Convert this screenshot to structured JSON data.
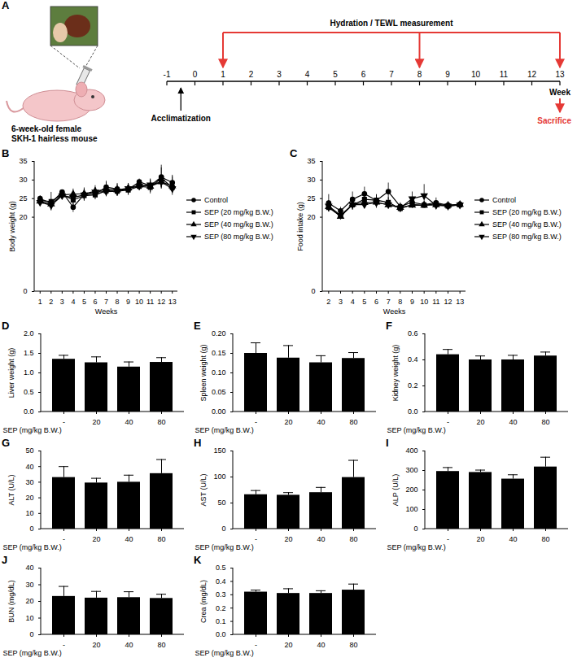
{
  "diagram": {
    "panel": "A",
    "subject_lines": [
      "6-week-old female",
      "SKH-1 hairless mouse"
    ],
    "timeline": {
      "weeks": [
        -1,
        0,
        1,
        2,
        3,
        4,
        5,
        6,
        7,
        8,
        9,
        10,
        11,
        12,
        13
      ],
      "axis_label": "Week",
      "start_event": "Acclimatization",
      "measurement_label": "Hydration / TEWL measurement",
      "measurement_weeks": [
        1,
        8,
        13
      ],
      "end_event": "Sacrifice",
      "end_week": 13
    }
  },
  "chart_data": [
    {
      "panel": "B",
      "type": "line",
      "xlabel": "Weeks",
      "ylabel": "Body weight (g)",
      "x": [
        1,
        2,
        3,
        4,
        5,
        6,
        7,
        8,
        9,
        10,
        11,
        12,
        13
      ],
      "xlim": [
        0.5,
        13.5
      ],
      "xticks": [
        1,
        2,
        3,
        4,
        5,
        6,
        7,
        8,
        9,
        10,
        11,
        12,
        13
      ],
      "ylim": [
        0,
        35
      ],
      "yticks": [
        0,
        20,
        25,
        30,
        35
      ],
      "legend": "right",
      "series": [
        {
          "name": "Control",
          "color": "#000000",
          "marker": "circle",
          "line_style": "solid",
          "values": [
            25,
            23.8,
            26.8,
            22.7,
            26.1,
            26.2,
            28.1,
            27.6,
            27.5,
            29.5,
            28.5,
            30.8,
            29.3
          ],
          "errors": [
            0.8,
            1.0,
            0.5,
            1.4,
            1.5,
            1.2,
            1.6,
            1.5,
            1.6,
            0.8,
            1.8,
            3.2,
            2.0
          ]
        },
        {
          "name": "SEP (20 mg/kg B.W.)",
          "color": "#000000",
          "marker": "square",
          "line_style": "solid",
          "values": [
            24.5,
            24.2,
            26.2,
            24.6,
            25.8,
            26.0,
            27.1,
            27.0,
            27.3,
            28.3,
            28.0,
            30.5,
            28.0
          ],
          "errors": [
            1.0,
            2.5,
            0.8,
            1.5,
            1.5,
            1.3,
            1.4,
            1.3,
            1.3,
            1.0,
            1.7,
            2.8,
            1.5
          ]
        },
        {
          "name": "SEP (40 mg/kg B.W.)",
          "color": "#000000",
          "marker": "triangle-up",
          "line_style": "solid",
          "values": [
            24.3,
            23.5,
            26.0,
            26.2,
            26.3,
            27.0,
            27.5,
            27.3,
            27.8,
            28.6,
            28.3,
            29.5,
            28.4
          ],
          "errors": [
            0.9,
            1.2,
            0.7,
            1.4,
            1.6,
            1.5,
            1.8,
            1.5,
            1.2,
            1.0,
            1.5,
            1.5,
            2.5
          ]
        },
        {
          "name": "SEP (80 mg/kg B.W.)",
          "color": "#000000",
          "marker": "triangle-down",
          "line_style": "solid",
          "values": [
            24.0,
            23.2,
            25.8,
            25.3,
            26.0,
            26.8,
            26.9,
            27.0,
            27.7,
            28.4,
            28.7,
            29.5,
            27.7
          ],
          "errors": [
            0.7,
            1.2,
            0.9,
            1.3,
            1.4,
            1.2,
            1.4,
            1.4,
            1.0,
            1.2,
            1.4,
            1.5,
            1.0
          ]
        }
      ]
    },
    {
      "panel": "C",
      "type": "line",
      "xlabel": "Weeks",
      "ylabel": "Food intake (g)",
      "x": [
        2,
        3,
        4,
        5,
        6,
        7,
        8,
        9,
        10,
        11,
        12,
        13
      ],
      "xlim": [
        1.5,
        13.5
      ],
      "xticks": [
        2,
        3,
        4,
        5,
        6,
        7,
        8,
        9,
        10,
        11,
        12,
        13
      ],
      "ylim": [
        0,
        35
      ],
      "yticks": [
        0,
        20,
        25,
        30,
        35
      ],
      "legend": "right",
      "series": [
        {
          "name": "Control",
          "color": "#000000",
          "marker": "circle",
          "line_style": "solid",
          "values": [
            23.8,
            21.7,
            24.8,
            26.3,
            24.5,
            26.9,
            22.9,
            24.0,
            23.4,
            23.9,
            23.2,
            23.5
          ],
          "errors": [
            2.3,
            1.0,
            2.0,
            1.8,
            1.5,
            2.3,
            1.0,
            1.2,
            0.8,
            1.3,
            0.8,
            0.6
          ]
        },
        {
          "name": "SEP (20 mg/kg B.W.)",
          "color": "#000000",
          "marker": "square",
          "line_style": "solid",
          "values": [
            22.6,
            20.3,
            23.3,
            24.8,
            24.6,
            24.0,
            22.3,
            23.4,
            23.2,
            23.6,
            23.0,
            23.3
          ],
          "errors": [
            1.2,
            0.8,
            1.3,
            1.0,
            1.5,
            1.3,
            0.6,
            1.0,
            0.7,
            0.7,
            0.7,
            0.6
          ]
        },
        {
          "name": "SEP (40 mg/kg B.W.)",
          "color": "#000000",
          "marker": "triangle-up",
          "line_style": "solid",
          "values": [
            22.8,
            20.2,
            23.5,
            23.9,
            24.0,
            23.3,
            22.6,
            23.2,
            23.2,
            23.3,
            23.2,
            23.4
          ],
          "errors": [
            1.3,
            0.7,
            1.2,
            1.2,
            1.3,
            1.1,
            0.8,
            0.8,
            0.8,
            0.8,
            0.8,
            0.5
          ]
        },
        {
          "name": "SEP (80 mg/kg B.W.)",
          "color": "#000000",
          "marker": "triangle-down",
          "line_style": "solid",
          "values": [
            23.0,
            20.5,
            23.4,
            23.4,
            23.9,
            23.4,
            22.5,
            25.0,
            25.8,
            23.2,
            23.0,
            23.3
          ],
          "errors": [
            1.5,
            0.8,
            1.5,
            1.0,
            1.5,
            1.0,
            0.8,
            1.8,
            3.0,
            0.9,
            0.8,
            0.6
          ]
        }
      ]
    },
    {
      "panel": "D",
      "type": "bar",
      "xlabel": "SEP (mg/kg B.W.)",
      "ylabel": "Liver weight (g)",
      "categories": [
        "-",
        "20",
        "40",
        "80"
      ],
      "values": [
        1.35,
        1.26,
        1.15,
        1.27
      ],
      "errors": [
        0.1,
        0.15,
        0.13,
        0.12
      ],
      "color": "#000000",
      "ylim": [
        0,
        2
      ],
      "yticks": [
        {
          "value": 0,
          "label": "0.0"
        },
        {
          "value": 0.5,
          "label": "0.5"
        },
        {
          "value": 1,
          "label": "1.0"
        },
        {
          "value": 1.5,
          "label": "1.5"
        },
        {
          "value": 2,
          "label": "2.0"
        }
      ]
    },
    {
      "panel": "E",
      "type": "bar",
      "xlabel": "SEP (mg/kg B.W.)",
      "ylabel": "Spleen weight (g)",
      "categories": [
        "-",
        "20",
        "40",
        "80"
      ],
      "values": [
        0.15,
        0.138,
        0.126,
        0.137
      ],
      "errors": [
        0.027,
        0.032,
        0.018,
        0.015
      ],
      "color": "#000000",
      "ylim": [
        0,
        0.2
      ],
      "yticks": [
        {
          "value": 0,
          "label": "0.00"
        },
        {
          "value": 0.05,
          "label": "0.05"
        },
        {
          "value": 0.1,
          "label": "0.10"
        },
        {
          "value": 0.15,
          "label": "0.15"
        },
        {
          "value": 0.2,
          "label": "0.20"
        }
      ]
    },
    {
      "panel": "F",
      "type": "bar",
      "xlabel": "SEP (mg/kg B.W.)",
      "ylabel": "Kidney weight (g)",
      "categories": [
        "-",
        "20",
        "40",
        "80"
      ],
      "values": [
        0.44,
        0.4,
        0.4,
        0.43
      ],
      "errors": [
        0.04,
        0.03,
        0.035,
        0.03
      ],
      "color": "#000000",
      "ylim": [
        0,
        0.6
      ],
      "yticks": [
        {
          "value": 0,
          "label": "0.0"
        },
        {
          "value": 0.2,
          "label": "0.2"
        },
        {
          "value": 0.4,
          "label": "0.4"
        },
        {
          "value": 0.6,
          "label": "0.6"
        }
      ]
    },
    {
      "panel": "G",
      "type": "bar",
      "xlabel": "SEP (mg/kg B.W.)",
      "ylabel": "ALT (U/L)",
      "categories": [
        "-",
        "20",
        "40",
        "80"
      ],
      "values": [
        33,
        29.5,
        30,
        35.5
      ],
      "errors": [
        7,
        3,
        4.5,
        9
      ],
      "color": "#000000",
      "ylim": [
        0,
        50
      ],
      "yticks": [
        0,
        10,
        20,
        30,
        40,
        50
      ]
    },
    {
      "panel": "H",
      "type": "bar",
      "xlabel": "SEP (mg/kg B.W.)",
      "ylabel": "AST (U/L)",
      "categories": [
        "-",
        "20",
        "40",
        "80"
      ],
      "values": [
        66,
        65,
        70,
        99
      ],
      "errors": [
        8,
        5,
        10,
        33
      ],
      "color": "#000000",
      "ylim": [
        0,
        150
      ],
      "yticks": [
        0,
        50,
        100,
        150
      ]
    },
    {
      "panel": "I",
      "type": "bar",
      "xlabel": "SEP (mg/kg B.W.)",
      "ylabel": "ALP (U/L)",
      "categories": [
        "-",
        "20",
        "40",
        "80"
      ],
      "values": [
        295,
        290,
        256,
        318
      ],
      "errors": [
        20,
        12,
        22,
        50
      ],
      "color": "#000000",
      "ylim": [
        0,
        400
      ],
      "yticks": [
        0,
        100,
        200,
        300,
        400
      ]
    },
    {
      "panel": "J",
      "type": "bar",
      "xlabel": "SEP (mg/kg B.W.)",
      "ylabel": "BUN (mg/dL)",
      "categories": [
        "-",
        "20",
        "40",
        "80"
      ],
      "values": [
        23,
        22,
        22.3,
        21.8
      ],
      "errors": [
        6,
        4,
        3.5,
        2.5
      ],
      "color": "#000000",
      "ylim": [
        0,
        40
      ],
      "yticks": [
        0,
        10,
        20,
        30,
        40
      ]
    },
    {
      "panel": "K",
      "type": "bar",
      "xlabel": "SEP (mg/kg B.W.)",
      "ylabel": "Crea (mg/dL)",
      "categories": [
        "-",
        "20",
        "40",
        "80"
      ],
      "values": [
        0.32,
        0.31,
        0.31,
        0.335
      ],
      "errors": [
        0.015,
        0.035,
        0.02,
        0.045
      ],
      "color": "#000000",
      "ylim": [
        0,
        0.5
      ],
      "yticks": [
        {
          "value": 0,
          "label": "0.0"
        },
        {
          "value": 0.1,
          "label": "0.1"
        },
        {
          "value": 0.2,
          "label": "0.2"
        },
        {
          "value": 0.3,
          "label": "0.3"
        },
        {
          "value": 0.4,
          "label": "0.4"
        },
        {
          "value": 0.5,
          "label": "0.5"
        }
      ]
    }
  ]
}
